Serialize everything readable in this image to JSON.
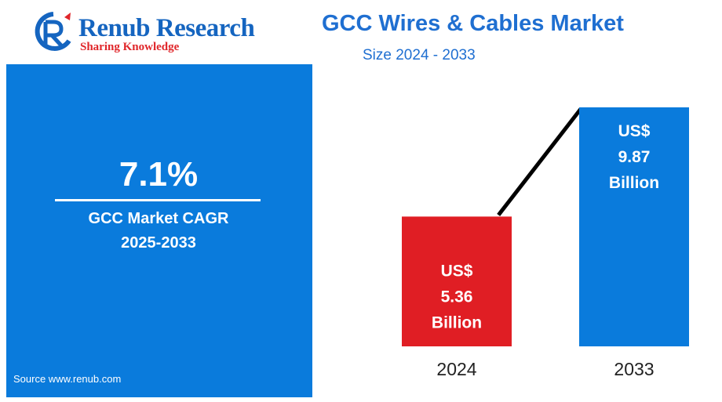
{
  "logo": {
    "name": "Renub Research",
    "tagline": "Sharing Knowledge"
  },
  "header": {
    "title": "GCC Wires & Cables Market",
    "subtitle": "Size 2024 - 2033"
  },
  "cagr_panel": {
    "value": "7.1%",
    "label_line1": "GCC Market CAGR",
    "label_line2": "2025-2033",
    "source": "Source  www.renub.com"
  },
  "colors": {
    "brand_blue": "#1f6fd1",
    "panel_blue": "#0a7bdc",
    "bar_2024": "#e01e24",
    "bar_2033": "#0a7bdc",
    "trend_line": "#000000"
  },
  "chart_data": {
    "type": "bar",
    "title": "GCC Wires & Cables Market",
    "subtitle": "Size 2024 - 2033",
    "categories": [
      "2024",
      "2033"
    ],
    "values": [
      5.36,
      9.87
    ],
    "unit": "US$ Billion",
    "data_labels": [
      [
        "US$",
        "5.36",
        "Billion"
      ],
      [
        "US$",
        "9.87",
        "Billion"
      ]
    ],
    "bar_colors": [
      "#e01e24",
      "#0a7bdc"
    ],
    "trend_line": true,
    "grid": false,
    "legend": "none"
  }
}
